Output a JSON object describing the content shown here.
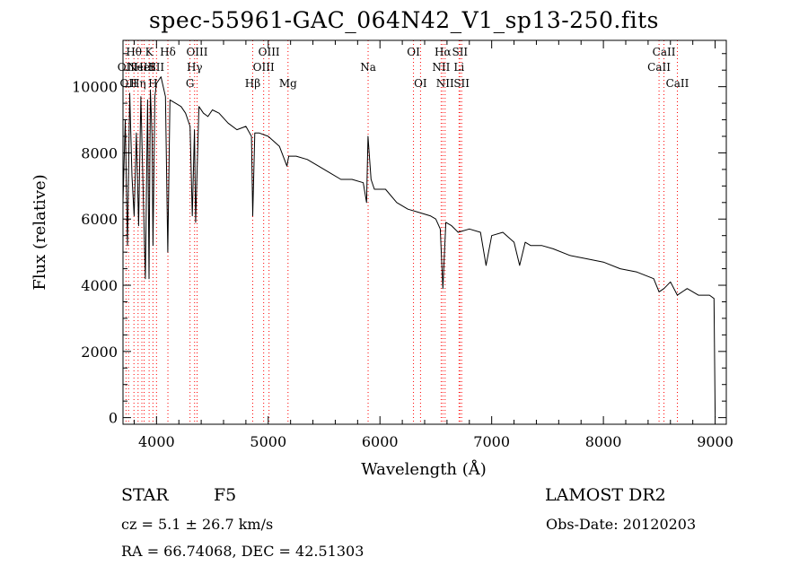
{
  "chart_data": {
    "type": "line",
    "title": "spec-55961-GAC_064N42_V1_sp13-250.fits",
    "xlabel": "Wavelength (Å)",
    "ylabel": "Flux (relative)",
    "xlim": [
      3700,
      9100
    ],
    "ylim": [
      -200,
      11400
    ],
    "xticks": [
      4000,
      5000,
      6000,
      7000,
      8000,
      9000
    ],
    "yticks": [
      0,
      2000,
      4000,
      6000,
      8000,
      10000
    ],
    "series": [
      {
        "x": [
          3700,
          3720,
          3740,
          3760,
          3780,
          3800,
          3820,
          3840,
          3860,
          3880,
          3900,
          3920,
          3933,
          3945,
          3960,
          3968,
          3985,
          4000,
          4040,
          4080,
          4101,
          4120,
          4170,
          4220,
          4260,
          4300,
          4320,
          4340,
          4350,
          4380,
          4420,
          4460,
          4500,
          4560,
          4640,
          4720,
          4800,
          4850,
          4861,
          4880,
          4920,
          5000,
          5100,
          5167,
          5183,
          5250,
          5350,
          5450,
          5550,
          5650,
          5750,
          5850,
          5880,
          5893,
          5920,
          5950,
          6050,
          6150,
          6250,
          6350,
          6450,
          6500,
          6540,
          6563,
          6590,
          6640,
          6700,
          6800,
          6900,
          6950,
          7000,
          7100,
          7200,
          7250,
          7300,
          7350,
          7450,
          7550,
          7700,
          7850,
          8000,
          8150,
          8300,
          8450,
          8498,
          8542,
          8600,
          8662,
          8750,
          8850,
          8950,
          8990,
          9000
        ],
        "y": [
          6500,
          9000,
          5200,
          9800,
          7300,
          6100,
          8600,
          5800,
          9700,
          6900,
          4200,
          9600,
          4200,
          9900,
          8500,
          5200,
          9700,
          10100,
          10300,
          9700,
          5000,
          9600,
          9500,
          9400,
          9200,
          8800,
          6100,
          8700,
          5900,
          9400,
          9200,
          9100,
          9300,
          9200,
          8900,
          8700,
          8800,
          8500,
          6100,
          8600,
          8600,
          8500,
          8200,
          7600,
          7900,
          7900,
          7800,
          7600,
          7400,
          7200,
          7200,
          7100,
          6500,
          8500,
          7200,
          6900,
          6900,
          6500,
          6300,
          6200,
          6100,
          6000,
          5700,
          3900,
          5900,
          5800,
          5600,
          5700,
          5600,
          4600,
          5500,
          5600,
          5300,
          4600,
          5300,
          5200,
          5200,
          5100,
          4900,
          4800,
          4700,
          4500,
          4400,
          4200,
          3800,
          3900,
          4100,
          3700,
          3900,
          3700,
          3700,
          3600,
          0
        ]
      }
    ],
    "lines": [
      {
        "wl": 3727,
        "label": "OII",
        "row": 2
      },
      {
        "wl": 3750,
        "label": "OII",
        "row": 3
      },
      {
        "wl": 3798,
        "label": "Hθ",
        "row": 1
      },
      {
        "wl": 3835,
        "label": "Hη",
        "row": 3
      },
      {
        "wl": 3869,
        "label": "NeIII",
        "row": 2
      },
      {
        "wl": 3889,
        "label": "HeI",
        "row": 2
      },
      {
        "wl": 3934,
        "label": "K",
        "row": 1
      },
      {
        "wl": 3968,
        "label": "H",
        "row": 3
      },
      {
        "wl": 4000,
        "label": "SII",
        "row": 2
      },
      {
        "wl": 4102,
        "label": "Hδ",
        "row": 1
      },
      {
        "wl": 4300,
        "label": "G",
        "row": 3
      },
      {
        "wl": 4341,
        "label": "Hγ",
        "row": 2
      },
      {
        "wl": 4363,
        "label": "OIII",
        "row": 1
      },
      {
        "wl": 4861,
        "label": "Hβ",
        "row": 3
      },
      {
        "wl": 4959,
        "label": "OIII",
        "row": 2
      },
      {
        "wl": 5007,
        "label": "OIII",
        "row": 1
      },
      {
        "wl": 5177,
        "label": "Mg",
        "row": 3
      },
      {
        "wl": 5894,
        "label": "Na",
        "row": 2
      },
      {
        "wl": 6300,
        "label": "OI",
        "row": 1
      },
      {
        "wl": 6363,
        "label": "OI",
        "row": 3
      },
      {
        "wl": 6548,
        "label": "NII",
        "row": 2
      },
      {
        "wl": 6563,
        "label": "Hα",
        "row": 1
      },
      {
        "wl": 6583,
        "label": "NII",
        "row": 3
      },
      {
        "wl": 6708,
        "label": "Li",
        "row": 2
      },
      {
        "wl": 6716,
        "label": "SII",
        "row": 1
      },
      {
        "wl": 6731,
        "label": "SII",
        "row": 3
      },
      {
        "wl": 8498,
        "label": "CaII",
        "row": 2
      },
      {
        "wl": 8542,
        "label": "CaII",
        "row": 1
      },
      {
        "wl": 8662,
        "label": "CaII",
        "row": 3
      }
    ],
    "grid": false,
    "legend": "none"
  },
  "info": {
    "object_class": "STAR",
    "subclass": "F5",
    "survey": "LAMOST DR2",
    "cz": "cz = 5.1 ± 26.7 km/s",
    "obs_date": "Obs-Date: 20120203",
    "radec": "RA =  66.74068, DEC =  42.51303"
  },
  "colors": {
    "spectrum": "#000000",
    "line_markers": "#ff0000",
    "axes": "#000000"
  }
}
